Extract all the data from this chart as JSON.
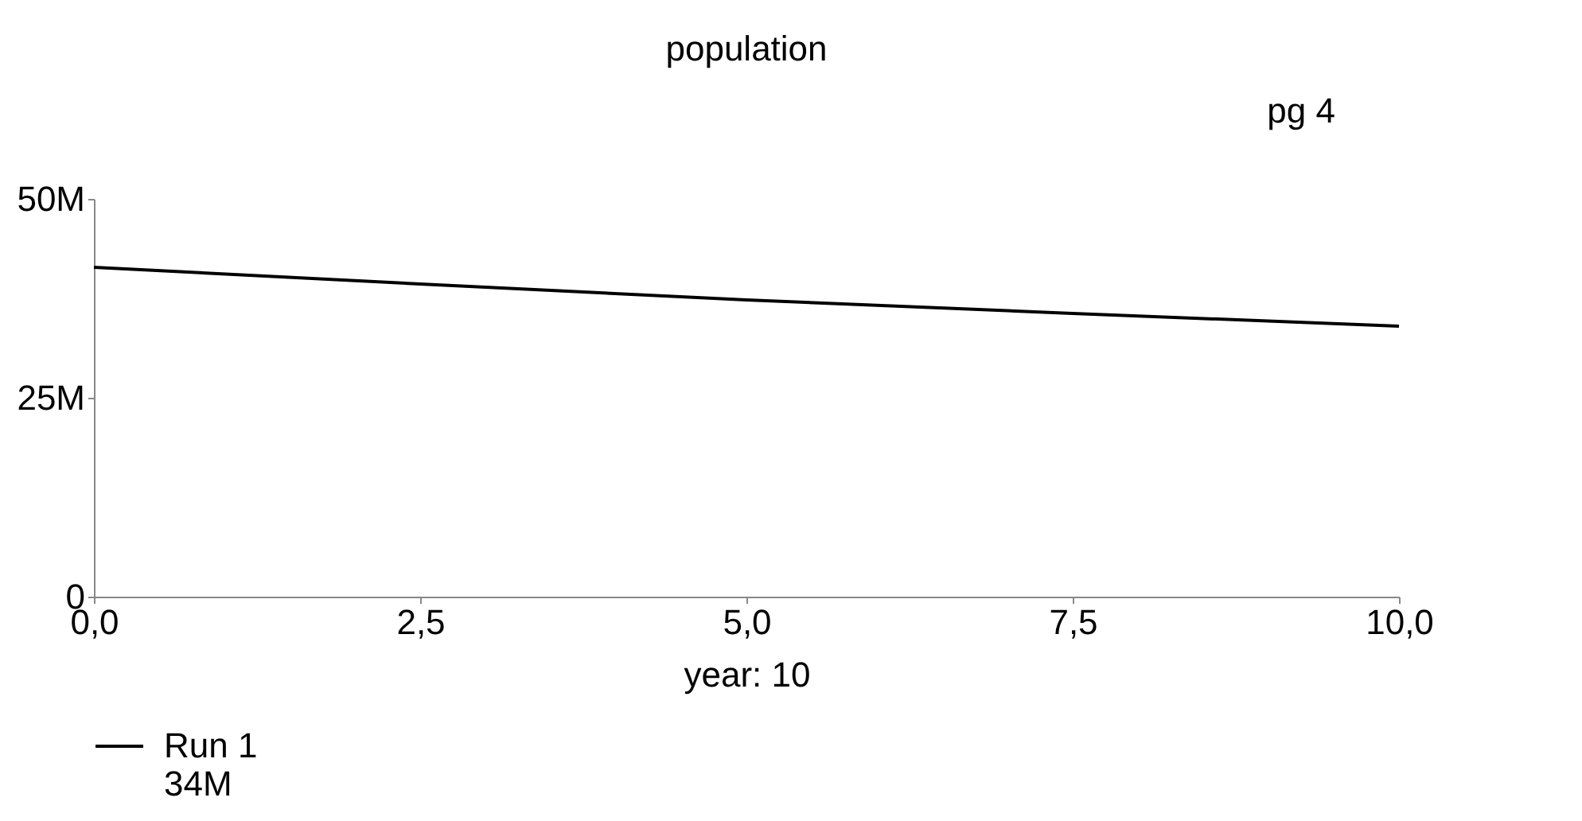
{
  "chart_data": {
    "type": "line",
    "title": "population",
    "xlabel": "year: 10",
    "x": [
      0,
      2.5,
      5,
      7.5,
      10
    ],
    "series": [
      {
        "name": "Run 1",
        "color": "#000000",
        "values": [
          41400000,
          39300000,
          37300000,
          35600000,
          34000000
        ]
      }
    ],
    "xlim": [
      0,
      10
    ],
    "xticks": [
      {
        "value": 0,
        "label": "0,0"
      },
      {
        "value": 2.5,
        "label": "2,5"
      },
      {
        "value": 5,
        "label": "5,0"
      },
      {
        "value": 7.5,
        "label": "7,5"
      },
      {
        "value": 10,
        "label": "10,0"
      }
    ],
    "ylim": [
      0,
      50000000
    ],
    "yticks": [
      {
        "value": 0,
        "label": "0"
      },
      {
        "value": 25000000,
        "label": "25M"
      },
      {
        "value": 50000000,
        "label": "50M"
      }
    ],
    "grid": false,
    "legend": "bottom",
    "marker": "none",
    "line_style": "solid",
    "annotations": [
      "pg 4",
      "34M"
    ]
  }
}
